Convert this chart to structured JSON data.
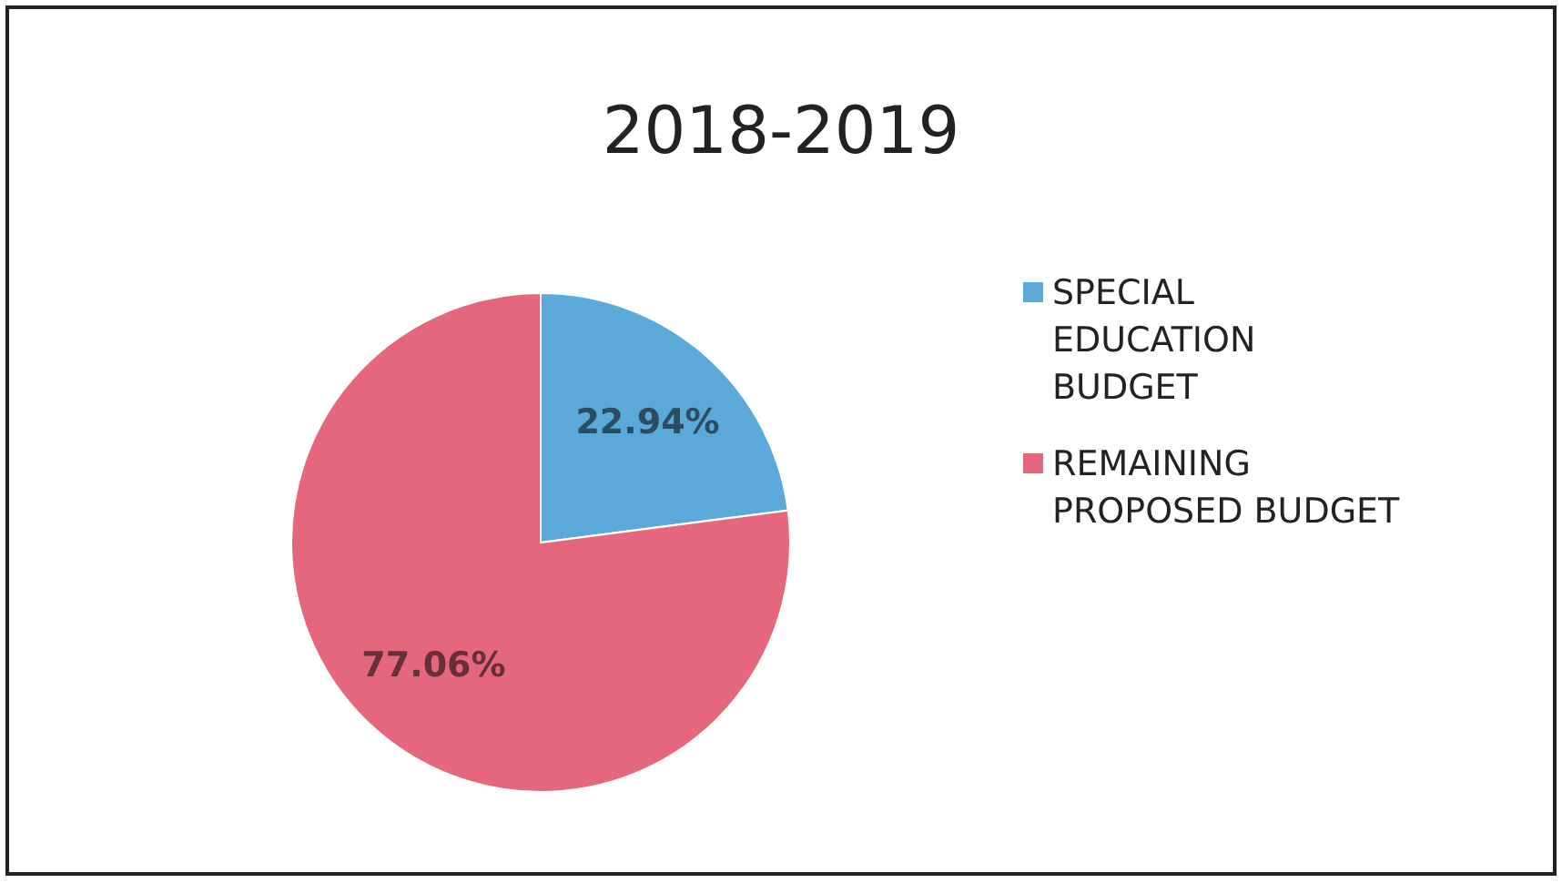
{
  "chart_data": {
    "type": "pie",
    "title": "2018-2019",
    "categories": [
      "SPECIAL EDUCATION BUDGET",
      "REMAINING PROPOSED BUDGET"
    ],
    "values": [
      22.94,
      77.06
    ],
    "colors": [
      "#5ba9d9",
      "#e5677e"
    ],
    "value_labels": [
      "22.94%",
      "77.06%"
    ],
    "legend": "right"
  }
}
